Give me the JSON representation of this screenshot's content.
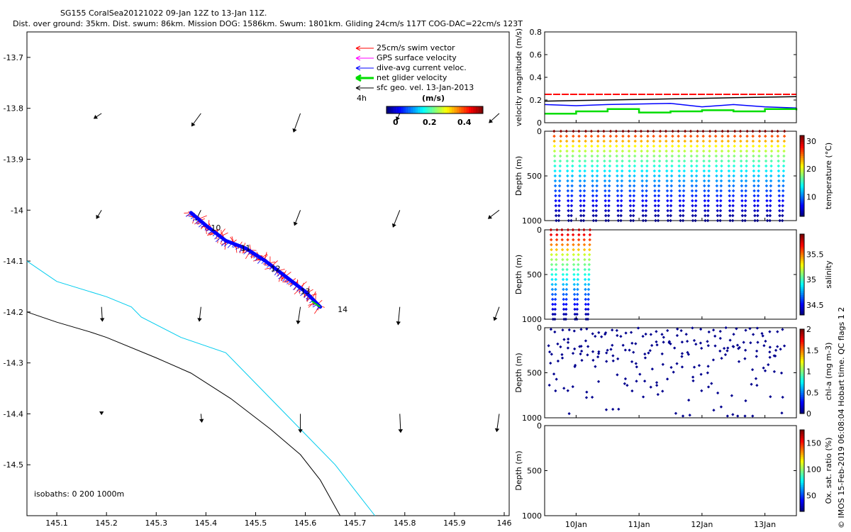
{
  "title": {
    "line1": "SG155 CoralSea20121022 09-Jan 12Z to 13-Jan 11Z.",
    "line2": "Dist. over ground: 35km. Dist. swum: 86km. Mission DOG: 1586km. Swum: 1801km. Gliding 24cm/s 117T COG-DAC=22cm/s 123T"
  },
  "side_label": "© IMOS 15-Feb-2019 06:08:04 Hobart time. QC flags 1  2",
  "colors": {
    "swim": "#ff0000",
    "gps": "#ff00ff",
    "dac": "#0000ff",
    "net": "#00dd00",
    "sfc": "#000000",
    "iso200": "#00ccee",
    "iso1000": "#000000"
  },
  "chart_data": [
    {
      "id": "map",
      "type": "scatter",
      "title": "",
      "xlabel": "",
      "ylabel": "",
      "xlim": [
        145.04,
        146.01
      ],
      "ylim": [
        -14.6,
        -13.65
      ],
      "xticks": [
        145.1,
        145.2,
        145.3,
        145.4,
        145.5,
        145.6,
        145.7,
        145.8,
        145.9,
        146
      ],
      "yticks": [
        -13.7,
        -13.8,
        -13.9,
        -14,
        -14.1,
        -14.2,
        -14.3,
        -14.4,
        -14.5
      ],
      "legend": {
        "placement": "top-right",
        "entries": [
          "25cm/s swim vector",
          "GPS surface velocity",
          "dive-avg current veloc.",
          "net glider velocity",
          "sfc geo. vel. 13-Jan-2013"
        ],
        "scale_label": "4h",
        "units": "(m/s)",
        "colorbar_ticks": [
          "0",
          "0.2",
          "0.4"
        ]
      },
      "isobath_label": "isobaths: 0   200  1000m",
      "track": [
        [
          145.37,
          -14.005
        ],
        [
          145.4,
          -14.03
        ],
        [
          145.44,
          -14.06
        ],
        [
          145.48,
          -14.075
        ],
        [
          145.52,
          -14.1
        ],
        [
          145.56,
          -14.13
        ],
        [
          145.6,
          -14.16
        ],
        [
          145.63,
          -14.19
        ]
      ],
      "day_labels": [
        {
          "text": "10",
          "lon": 145.41,
          "lat": -14.04
        },
        {
          "text": "11",
          "lon": 145.47,
          "lat": -14.08
        },
        {
          "text": "12",
          "lon": 145.53,
          "lat": -14.12
        },
        {
          "text": "13",
          "lon": 145.59,
          "lat": -14.165
        },
        {
          "text": "14",
          "lon": 145.665,
          "lat": -14.2
        }
      ],
      "isobath_200": [
        [
          145.04,
          -14.1
        ],
        [
          145.1,
          -14.14
        ],
        [
          145.2,
          -14.17
        ],
        [
          145.25,
          -14.19
        ],
        [
          145.27,
          -14.21
        ],
        [
          145.35,
          -14.25
        ],
        [
          145.44,
          -14.28
        ],
        [
          145.53,
          -14.37
        ],
        [
          145.6,
          -14.44
        ],
        [
          145.66,
          -14.5
        ],
        [
          145.74,
          -14.6
        ]
      ],
      "isobath_1000": [
        [
          145.04,
          -14.2
        ],
        [
          145.1,
          -14.22
        ],
        [
          145.17,
          -14.24
        ],
        [
          145.2,
          -14.25
        ],
        [
          145.3,
          -14.29
        ],
        [
          145.37,
          -14.32
        ],
        [
          145.45,
          -14.37
        ],
        [
          145.53,
          -14.43
        ],
        [
          145.59,
          -14.48
        ],
        [
          145.63,
          -14.53
        ],
        [
          145.67,
          -14.6
        ]
      ],
      "vectors": [
        {
          "lon": 145.19,
          "lat": -13.81,
          "u": -0.09,
          "v": -0.06
        },
        {
          "lon": 145.39,
          "lat": -13.81,
          "u": -0.11,
          "v": -0.15
        },
        {
          "lon": 145.59,
          "lat": -13.81,
          "u": -0.08,
          "v": -0.22
        },
        {
          "lon": 145.79,
          "lat": -13.81,
          "u": -0.04,
          "v": -0.08
        },
        {
          "lon": 145.99,
          "lat": -13.81,
          "u": -0.12,
          "v": -0.11
        },
        {
          "lon": 145.19,
          "lat": -14.0,
          "u": -0.06,
          "v": -0.1
        },
        {
          "lon": 145.39,
          "lat": -14.0,
          "u": -0.06,
          "v": -0.12
        },
        {
          "lon": 145.59,
          "lat": -14.0,
          "u": -0.07,
          "v": -0.18
        },
        {
          "lon": 145.79,
          "lat": -14.0,
          "u": -0.08,
          "v": -0.2
        },
        {
          "lon": 145.99,
          "lat": -14.0,
          "u": -0.13,
          "v": -0.1
        },
        {
          "lon": 145.19,
          "lat": -14.19,
          "u": 0.01,
          "v": -0.17
        },
        {
          "lon": 145.39,
          "lat": -14.19,
          "u": -0.02,
          "v": -0.17
        },
        {
          "lon": 145.59,
          "lat": -14.19,
          "u": -0.03,
          "v": -0.2
        },
        {
          "lon": 145.79,
          "lat": -14.19,
          "u": -0.02,
          "v": -0.21
        },
        {
          "lon": 145.99,
          "lat": -14.19,
          "u": -0.06,
          "v": -0.16
        },
        {
          "lon": 145.19,
          "lat": -14.4,
          "u": 0.0,
          "v": -0.01
        },
        {
          "lon": 145.39,
          "lat": -14.4,
          "u": 0.01,
          "v": -0.1
        },
        {
          "lon": 145.59,
          "lat": -14.4,
          "u": 0.0,
          "v": -0.22
        },
        {
          "lon": 145.79,
          "lat": -14.4,
          "u": 0.01,
          "v": -0.22
        },
        {
          "lon": 145.99,
          "lat": -14.4,
          "u": -0.03,
          "v": -0.21
        }
      ]
    },
    {
      "id": "velocity",
      "type": "line",
      "ylabel": "velocity magnitude (m/s)",
      "ylim": [
        0,
        0.8
      ],
      "yticks": [
        0,
        0.2,
        0.4,
        0.6,
        0.8
      ],
      "x": [
        0,
        0.5,
        1,
        1.5,
        2,
        2.5,
        3,
        3.5,
        4
      ],
      "series": [
        {
          "name": "25cm/s swim vector",
          "color": "#ff0000",
          "values": [
            0.25,
            0.25,
            0.25,
            0.25,
            0.25,
            0.25,
            0.25,
            0.25,
            0.25
          ]
        },
        {
          "name": "sfc geo. vel.",
          "color": "#000000",
          "values": [
            0.19,
            0.195,
            0.2,
            0.205,
            0.21,
            0.215,
            0.22,
            0.225,
            0.23
          ]
        },
        {
          "name": "dive-avg current veloc.",
          "color": "#0000ff",
          "values": [
            0.16,
            0.15,
            0.16,
            0.165,
            0.17,
            0.14,
            0.16,
            0.14,
            0.13
          ]
        },
        {
          "name": "net glider velocity",
          "color": "#00dd00",
          "values": [
            0.08,
            0.1,
            0.12,
            0.09,
            0.1,
            0.11,
            0.1,
            0.12,
            0.11
          ]
        }
      ]
    },
    {
      "id": "temperature",
      "type": "scatter",
      "ylabel": "Depth (m)",
      "clabel": "temperature (°C)",
      "ylim": [
        0,
        1000
      ],
      "yticks": [
        0,
        500,
        1000
      ],
      "cticks": [
        10,
        20,
        30
      ],
      "clim": [
        3,
        32
      ],
      "dives": 19,
      "dive_start": 0.15,
      "dive_span": 3.75,
      "max_depth": 1000
    },
    {
      "id": "salinity",
      "type": "scatter",
      "ylabel": "Depth (m)",
      "clabel": "salinity",
      "ylim": [
        0,
        1000
      ],
      "yticks": [
        0,
        500,
        1000
      ],
      "cticks": [
        34.5,
        35,
        35.5
      ],
      "clim": [
        34.3,
        35.9
      ],
      "dives": 4,
      "dive_start": 0.1,
      "dive_span": 0.7,
      "max_depth": 1000
    },
    {
      "id": "chla",
      "type": "scatter",
      "ylabel": "Depth (m)",
      "clabel": "chl-a (mg m-3)",
      "ylim": [
        0,
        1000
      ],
      "yticks": [
        0,
        500,
        1000
      ],
      "cticks": [
        0,
        0.5,
        1,
        1.5,
        2
      ],
      "clim": [
        0,
        2
      ]
    },
    {
      "id": "oxygen",
      "type": "scatter",
      "ylabel": "Depth (m)",
      "clabel": "Ox. sat. ratio (%)",
      "ylim": [
        0,
        1000
      ],
      "yticks": [
        0,
        500,
        1000
      ],
      "cticks": [
        50,
        100,
        150
      ],
      "clim": [
        20,
        175
      ]
    }
  ],
  "time_axis": {
    "xlim": [
      0,
      4
    ],
    "ticks": [
      {
        "label": "10Jan",
        "t": 0.5
      },
      {
        "label": "11Jan",
        "t": 1.5
      },
      {
        "label": "12Jan",
        "t": 2.5
      },
      {
        "label": "13Jan",
        "t": 3.5
      }
    ]
  }
}
